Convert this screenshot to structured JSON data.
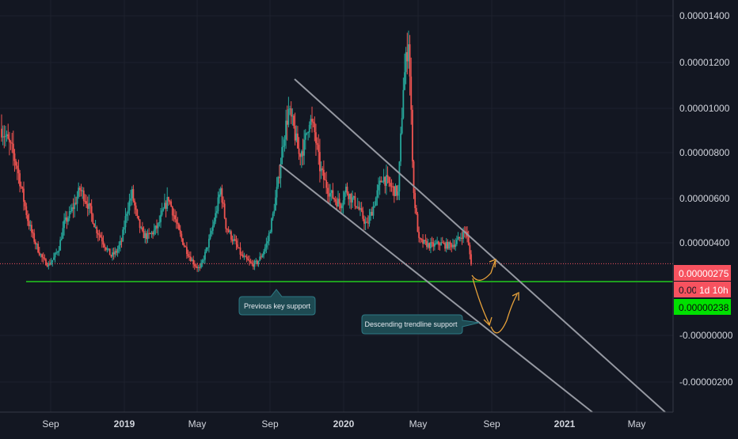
{
  "chart_data": {
    "type": "candlestick",
    "title": "",
    "xlabel": "",
    "ylabel": "",
    "x_ticks": [
      "Sep",
      "2019",
      "May",
      "Sep",
      "2020",
      "May",
      "Sep",
      "2021",
      "May"
    ],
    "y_ticks": [
      "0.00001400",
      "0.00001200",
      "0.00001000",
      "0.00000800",
      "0.00000600",
      "0.00000400",
      "-0.00000000",
      "-0.00000200"
    ],
    "ylim": [
      -3.2e-06,
      1.66e-05
    ],
    "current_price": {
      "label": "0.00000275",
      "value": 2.75e-06,
      "color": "#f7525f"
    },
    "countdown": {
      "prefix": "0.00",
      "label": "1d 10h"
    },
    "support_level": {
      "label": "0.00000238",
      "value": 2.38e-06,
      "color": "#00e000"
    },
    "annotations": [
      {
        "text": "Previous key support"
      },
      {
        "text": "Descending trendline support"
      }
    ],
    "series": [
      {
        "close_approx": [
          9e-06,
          8.5e-06,
          8e-06,
          7.2e-06,
          6e-06,
          4.8e-06,
          4e-06,
          3.4e-06,
          2.9e-06,
          2.7e-06,
          3e-06,
          3.5e-06,
          4.6e-06,
          5e-06,
          5.5e-06,
          6.2e-06,
          5.8e-06,
          5.2e-06,
          4.4e-06,
          4e-06,
          3.5e-06,
          3.1e-06,
          3.3e-06,
          3.8e-06,
          5.2e-06,
          6e-06,
          4.8e-06,
          4.1e-06,
          4e-06,
          4.2e-06,
          4.5e-06,
          5.2e-06,
          5.8e-06,
          5e-06,
          4.2e-06,
          3.6e-06,
          3.1e-06,
          2.7e-06,
          2.5e-06,
          3.2e-06,
          4e-06,
          5e-06,
          6.2e-06,
          4.5e-06,
          4e-06,
          3.6e-06,
          3.1e-06,
          2.9e-06,
          2.7e-06,
          2.8e-06,
          3.2e-06,
          3.8e-06,
          5e-06,
          6.5e-06,
          8.5e-06,
          9.8e-06,
          9e-06,
          7.8e-06,
          8.2e-06,
          9.5e-06,
          8.8e-06,
          7.2e-06,
          6.5e-06,
          6e-06,
          5.7e-06,
          5.5e-06,
          6.2e-06,
          5.8e-06,
          5.5e-06,
          5e-06,
          4.5e-06,
          5.2e-06,
          6e-06,
          6.8e-06,
          6.5e-06,
          6.2e-06,
          6e-06,
          1.1e-05,
          1.32e-05,
          6e-06,
          3.8e-06,
          3.7e-06,
          3.6e-06,
          3.6e-06,
          3.7e-06,
          3.6e-06,
          3.6e-06,
          3.7e-06,
          4e-06,
          4.3e-06,
          2.8e-06
        ]
      }
    ]
  }
}
